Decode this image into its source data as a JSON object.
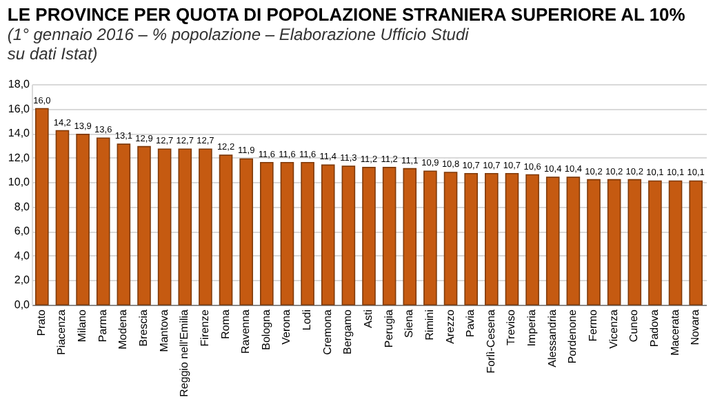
{
  "chart_data": {
    "type": "bar",
    "title": "LE PROVINCE PER QUOTA DI POPOLAZIONE STRANIERA SUPERIORE AL 10%",
    "subtitle": "(1° gennaio 2016 – % popolazione – Elaborazione Ufficio Studi\nsu dati Istat)",
    "categories": [
      "Prato",
      "Piacenza",
      "Milano",
      "Parma",
      "Modena",
      "Brescia",
      "Mantova",
      "Reggio nell'Emilia",
      "Firenze",
      "Roma",
      "Ravenna",
      "Bologna",
      "Verona",
      "Lodi",
      "Cremona",
      "Bergamo",
      "Asti",
      "Perugia",
      "Siena",
      "Rimini",
      "Arezzo",
      "Pavia",
      "Forlì-Cesena",
      "Treviso",
      "Imperia",
      "Alessandria",
      "Pordenone",
      "Fermo",
      "Vicenza",
      "Cuneo",
      "Padova",
      "Macerata",
      "Novara"
    ],
    "values": [
      16.0,
      14.2,
      13.9,
      13.6,
      13.1,
      12.9,
      12.7,
      12.7,
      12.7,
      12.2,
      11.9,
      11.6,
      11.6,
      11.6,
      11.4,
      11.3,
      11.2,
      11.2,
      11.1,
      10.9,
      10.8,
      10.7,
      10.7,
      10.7,
      10.6,
      10.4,
      10.4,
      10.2,
      10.2,
      10.2,
      10.1,
      10.1,
      10.1
    ],
    "value_labels": [
      "16,0",
      "14,2",
      "13,9",
      "13,6",
      "13,1",
      "12,9",
      "12,7",
      "12,7",
      "12,7",
      "12,2",
      "11,9",
      "11,6",
      "11,6",
      "11,6",
      "11,4",
      "11,3",
      "11,2",
      "11,2",
      "11,1",
      "10,9",
      "10,8",
      "10,7",
      "10,7",
      "10,7",
      "10,6",
      "10,4",
      "10,4",
      "10,2",
      "10,2",
      "10,2",
      "10,1",
      "10,1",
      "10,1"
    ],
    "color": "#c55a11",
    "ylim": [
      0,
      18
    ],
    "yticks": [
      {
        "value": 0,
        "label": "0,0"
      },
      {
        "value": 2,
        "label": "2,0"
      },
      {
        "value": 4,
        "label": "4,0"
      },
      {
        "value": 6,
        "label": "6,0"
      },
      {
        "value": 8,
        "label": "8,0"
      },
      {
        "value": 10,
        "label": "10,0"
      },
      {
        "value": 12,
        "label": "12,0"
      },
      {
        "value": 14,
        "label": "14,0"
      },
      {
        "value": 16,
        "label": "16,0"
      },
      {
        "value": 18,
        "label": "18,0"
      }
    ],
    "grid": "y"
  }
}
